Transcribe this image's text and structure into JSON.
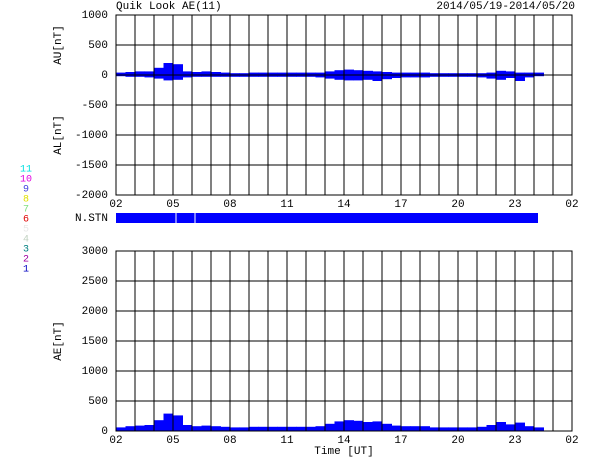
{
  "header": {
    "title": "Quik Look AE(11)",
    "period": "2014/05/19-2014/05/20",
    "nstn_label": "N.STN"
  },
  "stations": [
    {
      "label": "11",
      "color": "#00e0e0"
    },
    {
      "label": "10",
      "color": "#e000e0"
    },
    {
      "label": "9",
      "color": "#4040e0"
    },
    {
      "label": "8",
      "color": "#e0e000"
    },
    {
      "label": "7",
      "color": "#80e080"
    },
    {
      "label": "6",
      "color": "#e00000"
    },
    {
      "label": "5",
      "color": "#e8e8e8"
    },
    {
      "label": "4",
      "color": "#c0d0c0"
    },
    {
      "label": "3",
      "color": "#008080"
    },
    {
      "label": "2",
      "color": "#a000a0"
    },
    {
      "label": "1",
      "color": "#0000c0"
    }
  ],
  "chart_data": [
    {
      "type": "area",
      "y_label_top": "AU[nT]",
      "y_label_bottom": "AL[nT]",
      "x": [
        2,
        2.5,
        3,
        3.5,
        4,
        4.5,
        5,
        5.5,
        6,
        6.5,
        7,
        7.5,
        8,
        8.5,
        9,
        9.5,
        10,
        10.5,
        11,
        11.5,
        12,
        12.5,
        13,
        13.5,
        14,
        14.5,
        15,
        15.5,
        16,
        16.5,
        17,
        17.5,
        18,
        18.5,
        19,
        19.5,
        20,
        20.5,
        21,
        21.5,
        22,
        22.5,
        23,
        23.5,
        24
      ],
      "series": [
        {
          "name": "AU",
          "color": "#0000ff",
          "values": [
            40,
            50,
            60,
            60,
            120,
            200,
            180,
            60,
            50,
            60,
            50,
            40,
            30,
            30,
            40,
            40,
            40,
            40,
            40,
            40,
            40,
            40,
            60,
            80,
            90,
            80,
            70,
            60,
            50,
            40,
            40,
            40,
            40,
            30,
            30,
            30,
            30,
            30,
            30,
            40,
            70,
            60,
            40,
            40,
            40
          ]
        },
        {
          "name": "AL",
          "color": "#0000ff",
          "values": [
            -20,
            -30,
            -30,
            -40,
            -60,
            -90,
            -80,
            -40,
            -30,
            -30,
            -30,
            -30,
            -30,
            -30,
            -30,
            -30,
            -30,
            -30,
            -30,
            -30,
            -30,
            -40,
            -60,
            -80,
            -90,
            -90,
            -80,
            -100,
            -70,
            -50,
            -40,
            -40,
            -40,
            -30,
            -30,
            -30,
            -30,
            -30,
            -40,
            -60,
            -80,
            -50,
            -100,
            -40,
            -20
          ]
        }
      ],
      "xlim": [
        2,
        26
      ],
      "xticks": [
        {
          "value": 2,
          "label": "02"
        },
        {
          "value": 5,
          "label": "05"
        },
        {
          "value": 8,
          "label": "08"
        },
        11,
        14,
        17,
        20,
        23,
        {
          "value": 26,
          "label": "02"
        }
      ],
      "xgrid": [
        2,
        3,
        4,
        5,
        6,
        7,
        8,
        9,
        10,
        11,
        12,
        13,
        14,
        15,
        16,
        17,
        18,
        19,
        20,
        21,
        22,
        23,
        24,
        25,
        26
      ],
      "ylim": [
        -2000,
        1000
      ],
      "yticks": [
        1000,
        500,
        0,
        -500,
        -1000,
        -1500,
        -2000
      ],
      "grid": true
    },
    {
      "type": "area",
      "y_label": "AE[nT]",
      "x_label": "Time [UT]",
      "x": [
        2,
        2.5,
        3,
        3.5,
        4,
        4.5,
        5,
        5.5,
        6,
        6.5,
        7,
        7.5,
        8,
        8.5,
        9,
        9.5,
        10,
        10.5,
        11,
        11.5,
        12,
        12.5,
        13,
        13.5,
        14,
        14.5,
        15,
        15.5,
        16,
        16.5,
        17,
        17.5,
        18,
        18.5,
        19,
        19.5,
        20,
        20.5,
        21,
        21.5,
        22,
        22.5,
        23,
        23.5,
        24
      ],
      "series": [
        {
          "name": "AE",
          "color": "#0000ff",
          "values": [
            60,
            80,
            90,
            100,
            180,
            290,
            260,
            100,
            80,
            90,
            80,
            70,
            60,
            60,
            70,
            70,
            70,
            70,
            70,
            70,
            70,
            80,
            120,
            160,
            180,
            170,
            150,
            160,
            120,
            90,
            80,
            80,
            80,
            60,
            60,
            60,
            60,
            60,
            70,
            100,
            150,
            110,
            140,
            80,
            60
          ]
        }
      ],
      "xlim": [
        2,
        26
      ],
      "xticks": [
        {
          "value": 2,
          "label": "02"
        },
        {
          "value": 5,
          "label": "05"
        },
        {
          "value": 8,
          "label": "08"
        },
        11,
        14,
        17,
        20,
        23,
        {
          "value": 26,
          "label": "02"
        }
      ],
      "xgrid": [
        2,
        3,
        4,
        5,
        6,
        7,
        8,
        9,
        10,
        11,
        12,
        13,
        14,
        15,
        16,
        17,
        18,
        19,
        20,
        21,
        22,
        23,
        24,
        25,
        26
      ],
      "ylim": [
        0,
        3000
      ],
      "yticks": [
        3000,
        2500,
        2000,
        1500,
        1000,
        500,
        0
      ],
      "grid": true
    }
  ]
}
